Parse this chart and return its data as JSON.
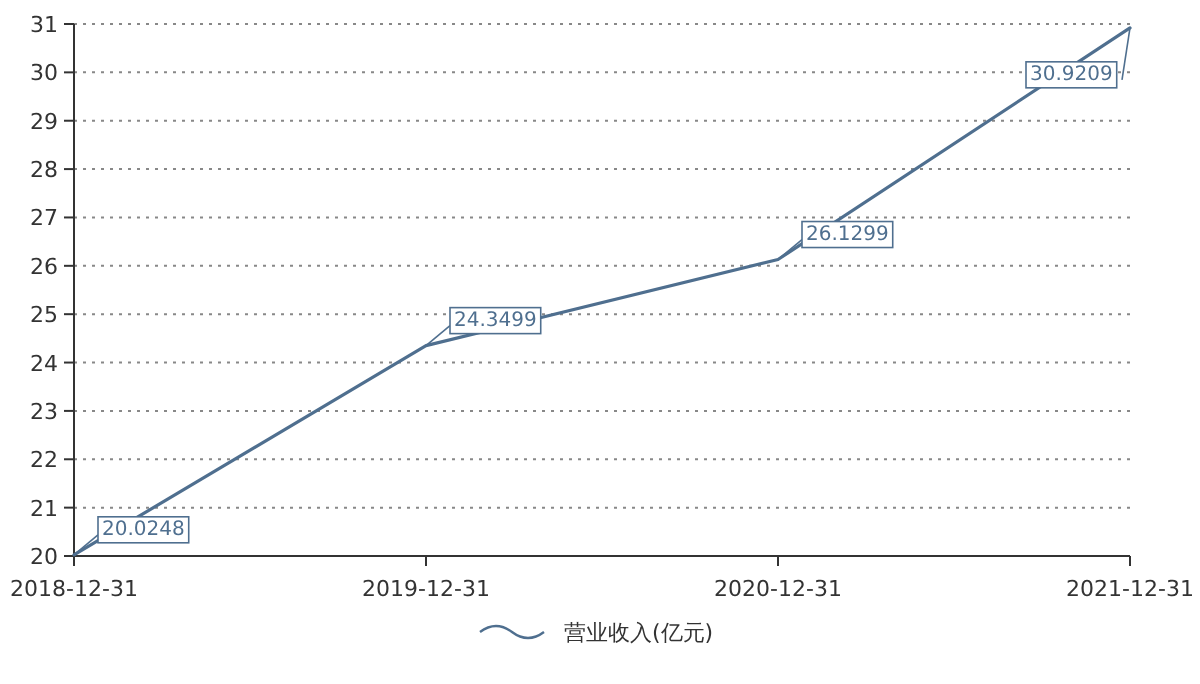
{
  "chart_data": {
    "type": "line",
    "categories": [
      "2018-12-31",
      "2019-12-31",
      "2020-12-31",
      "2021-12-31"
    ],
    "series": [
      {
        "name": "营业收入(亿元)",
        "color": "#4f6f8f",
        "values": [
          20.0248,
          24.3499,
          26.1299,
          30.9209
        ]
      }
    ],
    "ylim": [
      20,
      31
    ],
    "yticks": [
      20,
      21,
      22,
      23,
      24,
      25,
      26,
      27,
      28,
      29,
      30,
      31
    ],
    "grid": "y",
    "legend": "bottom",
    "data_labels": true,
    "marker": "none",
    "line_style": "solid"
  }
}
